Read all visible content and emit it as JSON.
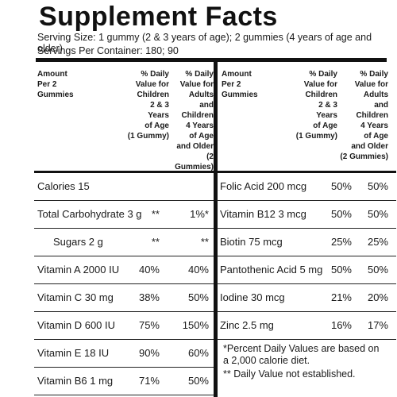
{
  "title": "Supplement Facts",
  "serving_size": "Serving Size: 1 gummy (2 & 3 years of age); 2 gummies (4 years of age and older)",
  "servings_per_container": "Servings Per Container: 180; 90",
  "header": {
    "amount": "Amount\nPer 2\nGummies",
    "dv_children": "% Daily\nValue for\nChildren\n2 & 3\nYears\nof Age\n(1 Gummy)",
    "dv_adults": "% Daily\nValue for\nAdults\nand\nChildren\n4 Years\nof Age\nand Older\n(2 Gummies)"
  },
  "left_rows": [
    {
      "name": "Calories 15",
      "v1": "",
      "v2": ""
    },
    {
      "name": "Total Carbohydrate 3 g",
      "v1": "**",
      "v2": "1%*"
    },
    {
      "name": "Sugars 2 g",
      "v1": "**",
      "v2": "**",
      "indent": true
    },
    {
      "name": "Vitamin A 2000 IU",
      "v1": "40%",
      "v2": "40%"
    },
    {
      "name": "Vitamin C 30 mg",
      "v1": "38%",
      "v2": "50%"
    },
    {
      "name": "Vitamin D 600 IU",
      "v1": "75%",
      "v2": "150%"
    },
    {
      "name": "Vitamin E 18 IU",
      "v1": "90%",
      "v2": "60%"
    },
    {
      "name": "Vitamin B6 1 mg",
      "v1": "71%",
      "v2": "50%"
    }
  ],
  "right_rows": [
    {
      "name": "Folic Acid 200 mcg",
      "v1": "50%",
      "v2": "50%"
    },
    {
      "name": "Vitamin B12 3 mcg",
      "v1": "50%",
      "v2": "50%"
    },
    {
      "name": "Biotin 75 mcg",
      "v1": "25%",
      "v2": "25%"
    },
    {
      "name": "Pantothenic Acid 5 mg",
      "v1": "50%",
      "v2": "50%"
    },
    {
      "name": "Iodine 30 mcg",
      "v1": "21%",
      "v2": "20%"
    },
    {
      "name": "Zinc 2.5 mg",
      "v1": "16%",
      "v2": "17%"
    }
  ],
  "footnotes": {
    "dv_note": "*Percent Daily Values are based on\na 2,000 calorie diet.",
    "not_established": "** Daily Value not established."
  }
}
